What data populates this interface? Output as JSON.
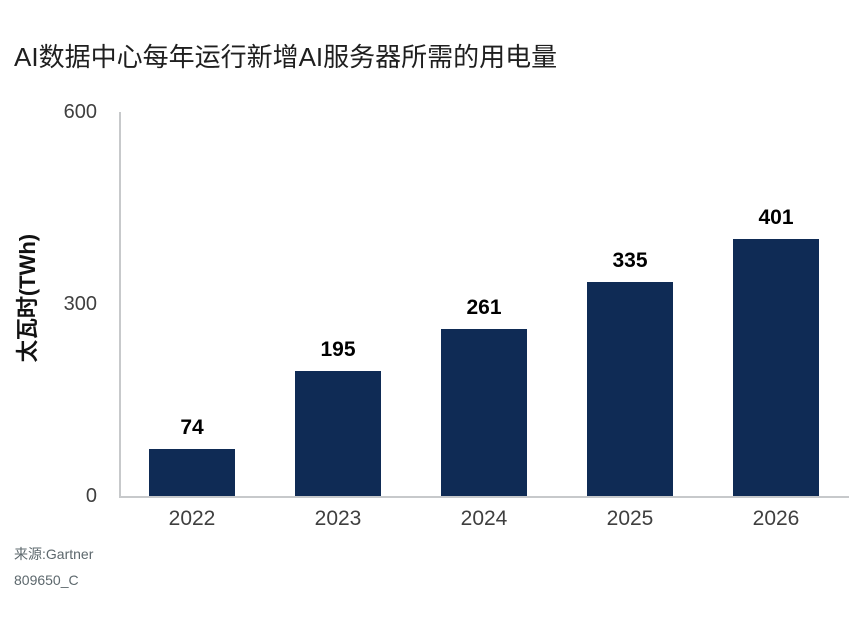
{
  "chart_data": {
    "type": "bar",
    "title": "AI数据中心每年运行新增AI服务器所需的用电量",
    "categories": [
      "2022",
      "2023",
      "2024",
      "2025",
      "2026"
    ],
    "values": [
      74,
      195,
      261,
      335,
      401
    ],
    "xlabel": "",
    "ylabel": "太瓦时(TWh)",
    "ylim": [
      0,
      600
    ],
    "yticks": [
      0,
      300,
      600
    ],
    "grid": false,
    "legend": false,
    "bar_color": "#0f2b55",
    "axis_color": "#c7c9cb",
    "tick_label_color": "#3f3f3f",
    "value_label_color": "#000000",
    "source": "来源:Gartner",
    "doc_id": "809650_C"
  }
}
